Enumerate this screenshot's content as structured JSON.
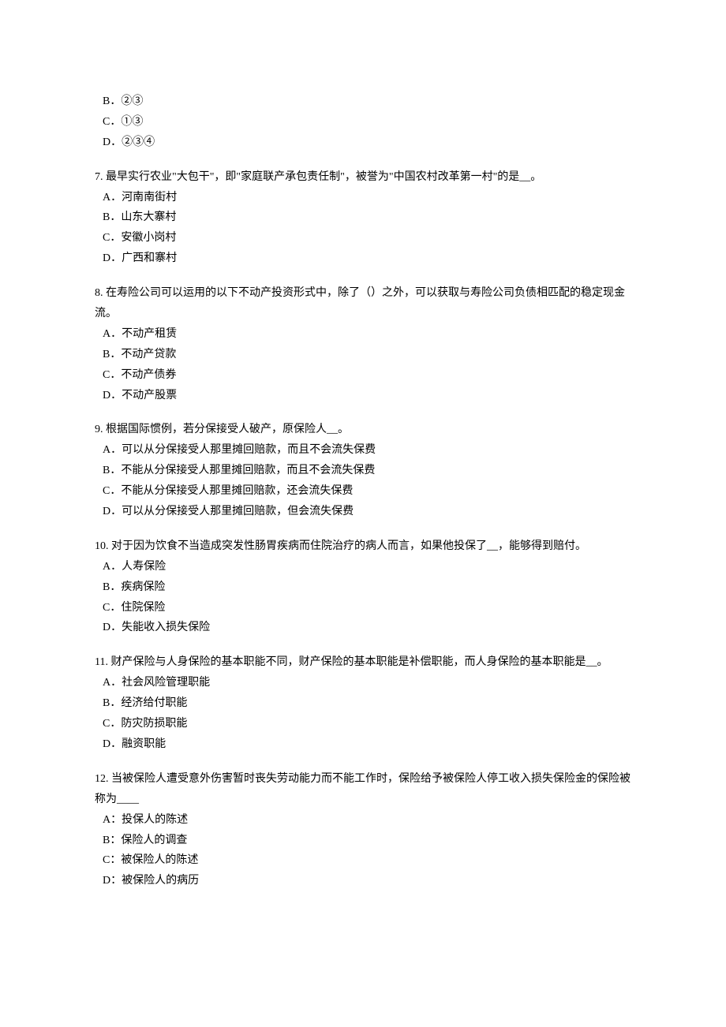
{
  "o6b": "B．②③",
  "o6c": "C．①③",
  "o6d": "D．②③④",
  "q7": "7. 最早实行农业\"大包干\"，即\"家庭联产承包责任制\"，被誉为\"中国农村改革第一村\"的是__。",
  "o7a": "A．河南南街村",
  "o7b": "B．山东大寨村",
  "o7c": "C．安徽小岗村",
  "o7d": "D．广西和寨村",
  "q8": "8. 在寿险公司可以运用的以下不动产投资形式中，除了（）之外，可以获取与寿险公司负债相匹配的稳定现金流。",
  "o8a": "A．不动产租赁",
  "o8b": "B．不动产贷款",
  "o8c": "C．不动产债券",
  "o8d": "D．不动产股票",
  "q9": "9. 根据国际惯例，若分保接受人破产，原保险人__。",
  "o9a": "A．可以从分保接受人那里摊回赔款，而且不会流失保费",
  "o9b": "B．不能从分保接受人那里摊回赔款，而且不会流失保费",
  "o9c": "C．不能从分保接受人那里摊回赔款，还会流失保费",
  "o9d": "D．可以从分保接受人那里摊回赔款，但会流失保费",
  "q10": "10. 对于因为饮食不当造成突发性肠胃疾病而住院治疗的病人而言，如果他投保了__，能够得到赔付。",
  "o10a": "A．人寿保险",
  "o10b": "B．疾病保险",
  "o10c": "C．住院保险",
  "o10d": "D．失能收入损失保险",
  "q11": "11. 财产保险与人身保险的基本职能不同，财产保险的基本职能是补偿职能，而人身保险的基本职能是__。",
  "o11a": "A．社会风险管理职能",
  "o11b": "B．经济给付职能",
  "o11c": "C．防灾防损职能",
  "o11d": "D．融资职能",
  "q12": "12. 当被保险人遭受意外伤害暂时丧失劳动能力而不能工作时，保险给予被保险人停工收入损失保险金的保险被称为____",
  "o12a": "A：投保人的陈述",
  "o12b": "B：保险人的调查",
  "o12c": "C：被保险人的陈述",
  "o12d": "D：被保险人的病历"
}
